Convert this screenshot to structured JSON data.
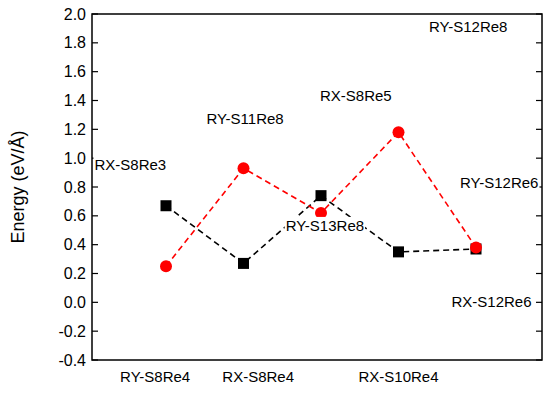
{
  "chart_data": {
    "type": "line",
    "y_label": "Energy (eV/Å)",
    "categories": [
      null,
      null,
      null,
      null,
      null
    ],
    "series": [
      {
        "color": "#000000",
        "marker": "square",
        "line_style": "dashed",
        "values": [
          0.67,
          0.27,
          0.74,
          0.35,
          0.37
        ]
      },
      {
        "color": "#ff0000",
        "marker": "circle",
        "line_style": "dashed",
        "values": [
          0.25,
          0.93,
          0.62,
          1.18,
          0.38
        ]
      }
    ],
    "ylim": [
      -0.4,
      2.0
    ],
    "yticks": [
      {
        "value": -0.4,
        "label": "-0.4"
      },
      {
        "value": -0.2,
        "label": "-0.2"
      },
      {
        "value": 0,
        "label": "0.0"
      },
      {
        "value": 0.2,
        "label": "0.2"
      },
      {
        "value": 0.4,
        "label": "0.4"
      },
      {
        "value": 0.6,
        "label": "0.6"
      },
      {
        "value": 0.8,
        "label": "0.8"
      },
      {
        "value": 1.0,
        "label": "1.0"
      },
      {
        "value": 1.2,
        "label": "1.2"
      },
      {
        "value": 1.4,
        "label": "1.4"
      },
      {
        "value": 1.6,
        "label": "1.6"
      },
      {
        "value": 1.8,
        "label": "1.8"
      },
      {
        "value": 2.0,
        "label": "2.0"
      }
    ],
    "tick_labels": "y",
    "grid": false,
    "annotations": [
      {
        "text": "RX-S8Re3",
        "x": -0.46,
        "y": 0.95
      },
      {
        "text": "RY-S11Re8",
        "x": 1.02,
        "y": 1.27
      },
      {
        "text": "RX-S8Re5",
        "x": 2.45,
        "y": 1.43
      },
      {
        "text": "RY-S12Re8",
        "x": 3.9,
        "y": 1.91
      },
      {
        "text": "RY-S12Re6",
        "x": 4.3,
        "y": 0.83
      },
      {
        "text": "RY-S13Re8",
        "x": 2.05,
        "y": 0.53
      },
      {
        "text": "RX-S12Re6",
        "x": 4.2,
        "y": 0.0
      },
      {
        "text": "RY-S8Re4",
        "x": -0.14,
        "y": -0.52
      },
      {
        "text": "RX-S8Re4",
        "x": 1.19,
        "y": -0.52
      },
      {
        "text": "RX-S10Re4",
        "x": 3.0,
        "y": -0.52
      }
    ]
  }
}
